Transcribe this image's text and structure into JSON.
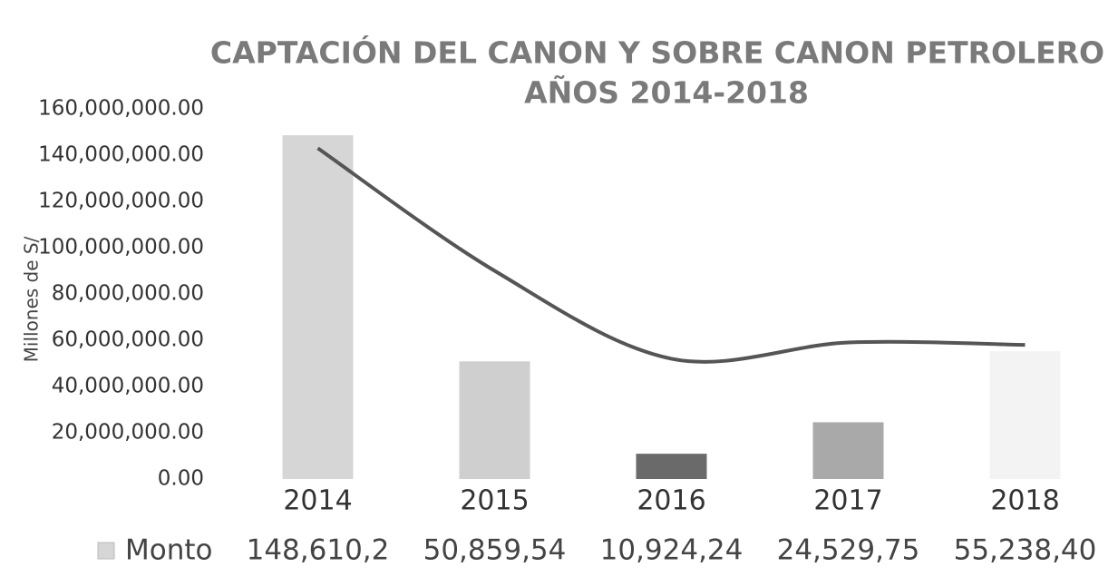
{
  "chart_data": {
    "type": "bar",
    "title": [
      "CAPTACIÓN DEL CANON Y SOBRE CANON PETROLERO",
      "AÑOS 2014-2018"
    ],
    "y_label": "Millones de S/",
    "categories": [
      "2014",
      "2015",
      "2016",
      "2017",
      "2018"
    ],
    "series": [
      {
        "name": "Monto",
        "colors": [
          "#d6d6d6",
          "#cfcfcf",
          "#6a6a6a",
          "#a9a9a9",
          "#f3f3f3"
        ],
        "values": [
          148610200,
          50859540,
          10924240,
          24529750,
          55238400
        ],
        "value_labels": [
          "148,610,2",
          "50,859,54",
          "10,924,24",
          "24,529,75",
          "55,238,40"
        ]
      },
      {
        "type": "line",
        "color": "#555555",
        "values": [
          143000000,
          90000000,
          52000000,
          59000000,
          58000000
        ]
      }
    ],
    "ylim": [
      0,
      160000000
    ],
    "yticks": [
      {
        "value": 0,
        "label": "0.00"
      },
      {
        "value": 20000000,
        "label": "20,000,000.00"
      },
      {
        "value": 40000000,
        "label": "40,000,000.00"
      },
      {
        "value": 60000000,
        "label": "60,000,000.00"
      },
      {
        "value": 80000000,
        "label": "80,000,000.00"
      },
      {
        "value": 100000000,
        "label": "100,000,000.00"
      },
      {
        "value": 120000000,
        "label": "120,000,000.00"
      },
      {
        "value": 140000000,
        "label": "140,000,000.00"
      },
      {
        "value": 160000000,
        "label": "160,000,000.00"
      }
    ],
    "grid": false
  }
}
